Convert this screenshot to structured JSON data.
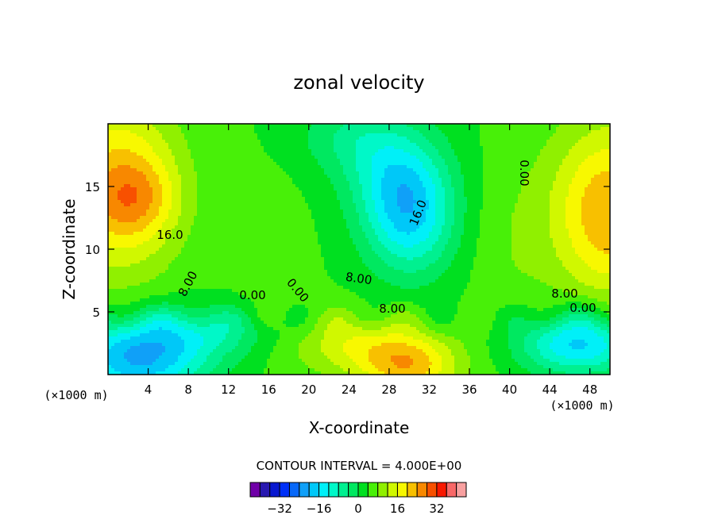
{
  "chart_data": {
    "type": "contour",
    "title": "zonal velocity",
    "xlabel": "X-coordinate",
    "ylabel": "Z-coordinate",
    "x_unit": "(×1000 m)",
    "y_unit": "(×1000 m)",
    "xlim": [
      0,
      50
    ],
    "ylim": [
      0,
      20
    ],
    "x_ticks": [
      4,
      8,
      12,
      16,
      20,
      24,
      28,
      32,
      36,
      40,
      44,
      48
    ],
    "y_ticks": [
      5,
      10,
      15
    ],
    "contour_interval_text": "CONTOUR INTERVAL = 4.000E+00",
    "contour_interval": 4.0,
    "contour_labels": [
      "16.0",
      "8.00",
      "0.00",
      "0.00",
      "8.00",
      "16.0",
      "8.00",
      "0.00",
      "8.00",
      "0.00"
    ],
    "colorbar": {
      "levels": [
        -40,
        -36,
        -32,
        -28,
        -24,
        -20,
        -16,
        -12,
        -8,
        -4,
        0,
        4,
        8,
        12,
        16,
        20,
        24,
        28,
        32,
        36,
        40
      ],
      "colors": [
        "#7000a8",
        "#2818b0",
        "#0818d0",
        "#0030f8",
        "#0868f8",
        "#10a0f8",
        "#00c8f8",
        "#00f0f8",
        "#00f8c8",
        "#00f090",
        "#00e860",
        "#00e020",
        "#48f008",
        "#90f000",
        "#d0f800",
        "#f8f800",
        "#f8c000",
        "#f88800",
        "#f85000",
        "#f81800",
        "#f86868",
        "#f8a0a0"
      ],
      "tick_labels": [
        "-32",
        "-16",
        "0",
        "16",
        "32"
      ],
      "tick_values": [
        -32,
        -16,
        0,
        16,
        32
      ]
    }
  }
}
